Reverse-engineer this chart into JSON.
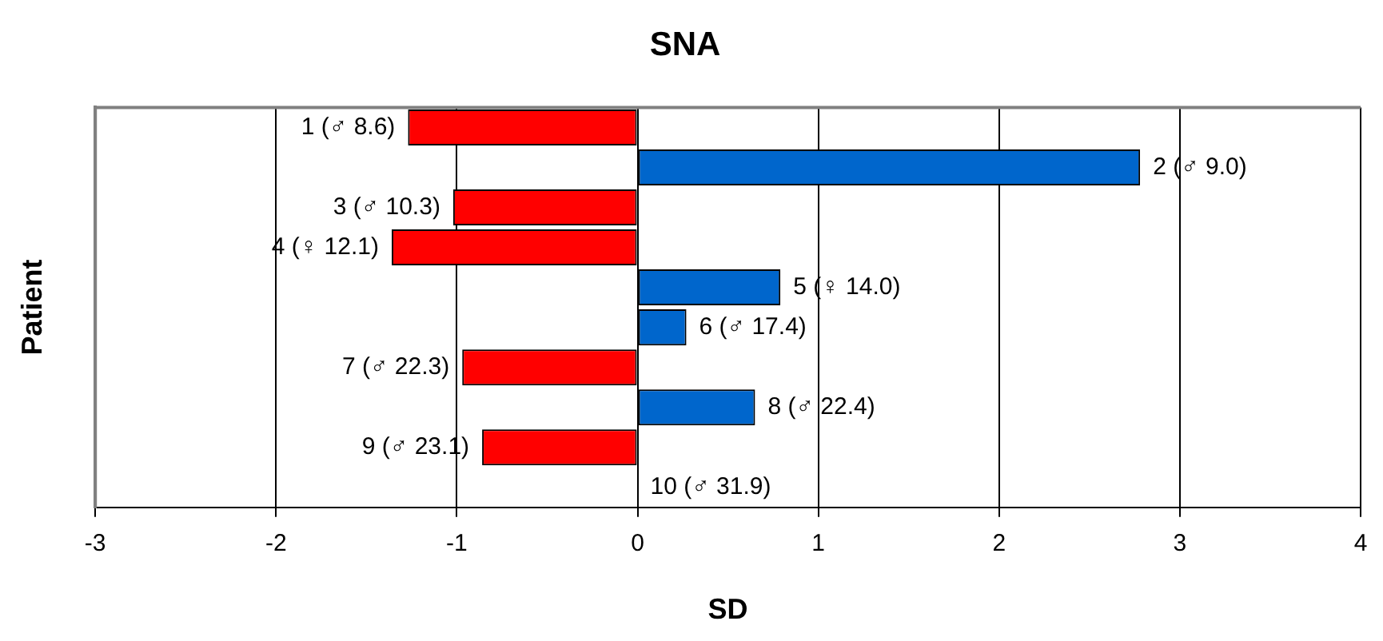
{
  "chart_data": {
    "type": "bar",
    "orientation": "horizontal",
    "title": "SNA",
    "xlabel": "SD",
    "ylabel": "Patient",
    "categories": [
      "1 (♂ 8.6)",
      "2 (♂ 9.0)",
      "3 (♂ 10.3)",
      "4 (♀ 12.1)",
      "5 (♀ 14.0)",
      "6 (♂ 17.4)",
      "7 (♂ 22.3)",
      "8 (♂ 22.4)",
      "9 (♂ 23.1)",
      "10 (♂ 31.9)"
    ],
    "values": [
      -1.27,
      2.78,
      -1.02,
      -1.36,
      0.79,
      0.27,
      -0.97,
      0.65,
      -0.86,
      0
    ],
    "colors": [
      "#ff0000",
      "#0066cc",
      "#ff0000",
      "#ff0000",
      "#0066cc",
      "#0066cc",
      "#ff0000",
      "#0066cc",
      "#ff0000",
      "#0066cc"
    ],
    "xlim": [
      -3,
      4
    ],
    "xticks": [
      -3,
      -2,
      -1,
      0,
      1,
      2,
      3,
      4
    ],
    "grid": "x",
    "legend": false,
    "tick_labels": "x"
  }
}
